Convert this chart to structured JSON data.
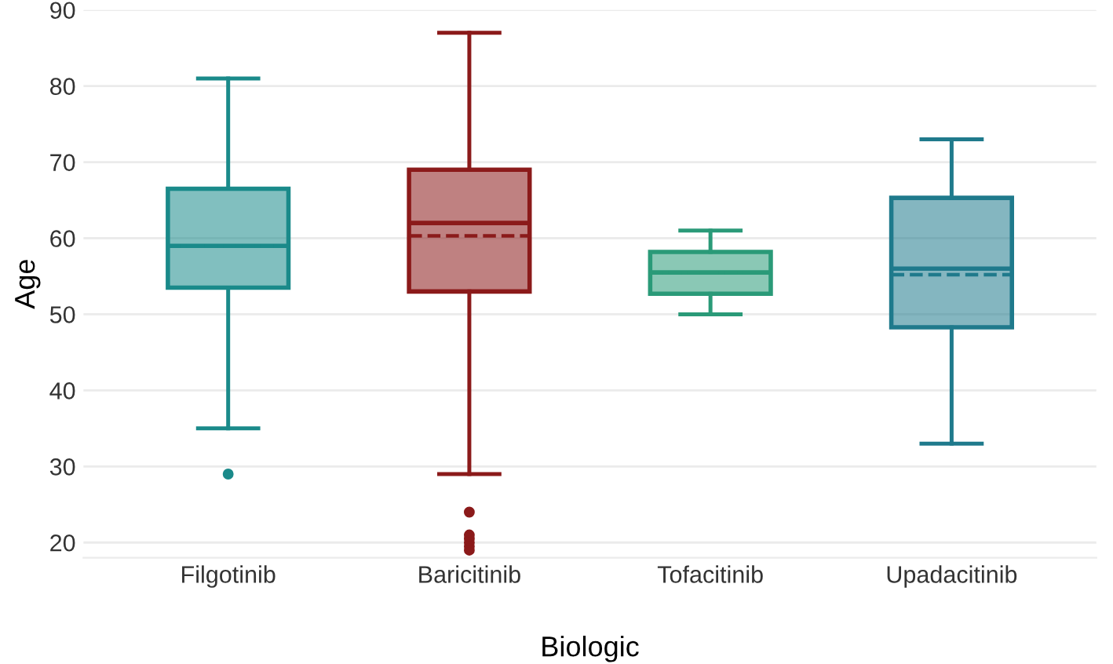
{
  "chart_data": {
    "type": "box",
    "xlabel": "Biologic",
    "ylabel": "Age",
    "categories": [
      "Filgotinib",
      "Baricitinib",
      "Tofacitinib",
      "Upadacitinib"
    ],
    "colors": [
      "#1a8a8a",
      "#8b1a1a",
      "#2a9a78",
      "#1f7a8c"
    ],
    "boxes": [
      {
        "low": 35,
        "q1": 53.5,
        "median": 59,
        "q3": 66.5,
        "high": 81,
        "mean": 59,
        "outliers": [
          29
        ]
      },
      {
        "low": 29,
        "q1": 53,
        "median": 62,
        "q3": 69,
        "high": 87,
        "mean": 60.3,
        "outliers": [
          24,
          21,
          20.5,
          20,
          19.5,
          19
        ]
      },
      {
        "low": 50,
        "q1": 52.7,
        "median": 55.5,
        "q3": 58.2,
        "high": 61,
        "mean": 55.5
      },
      {
        "low": 33,
        "q1": 48.3,
        "median": 56,
        "q3": 65.3,
        "high": 73,
        "mean": 55.2
      }
    ],
    "ylim": [
      18,
      90
    ],
    "yticks": [
      20,
      30,
      40,
      50,
      60,
      70,
      80,
      90
    ],
    "grid": "y",
    "line_style": "dashed"
  }
}
